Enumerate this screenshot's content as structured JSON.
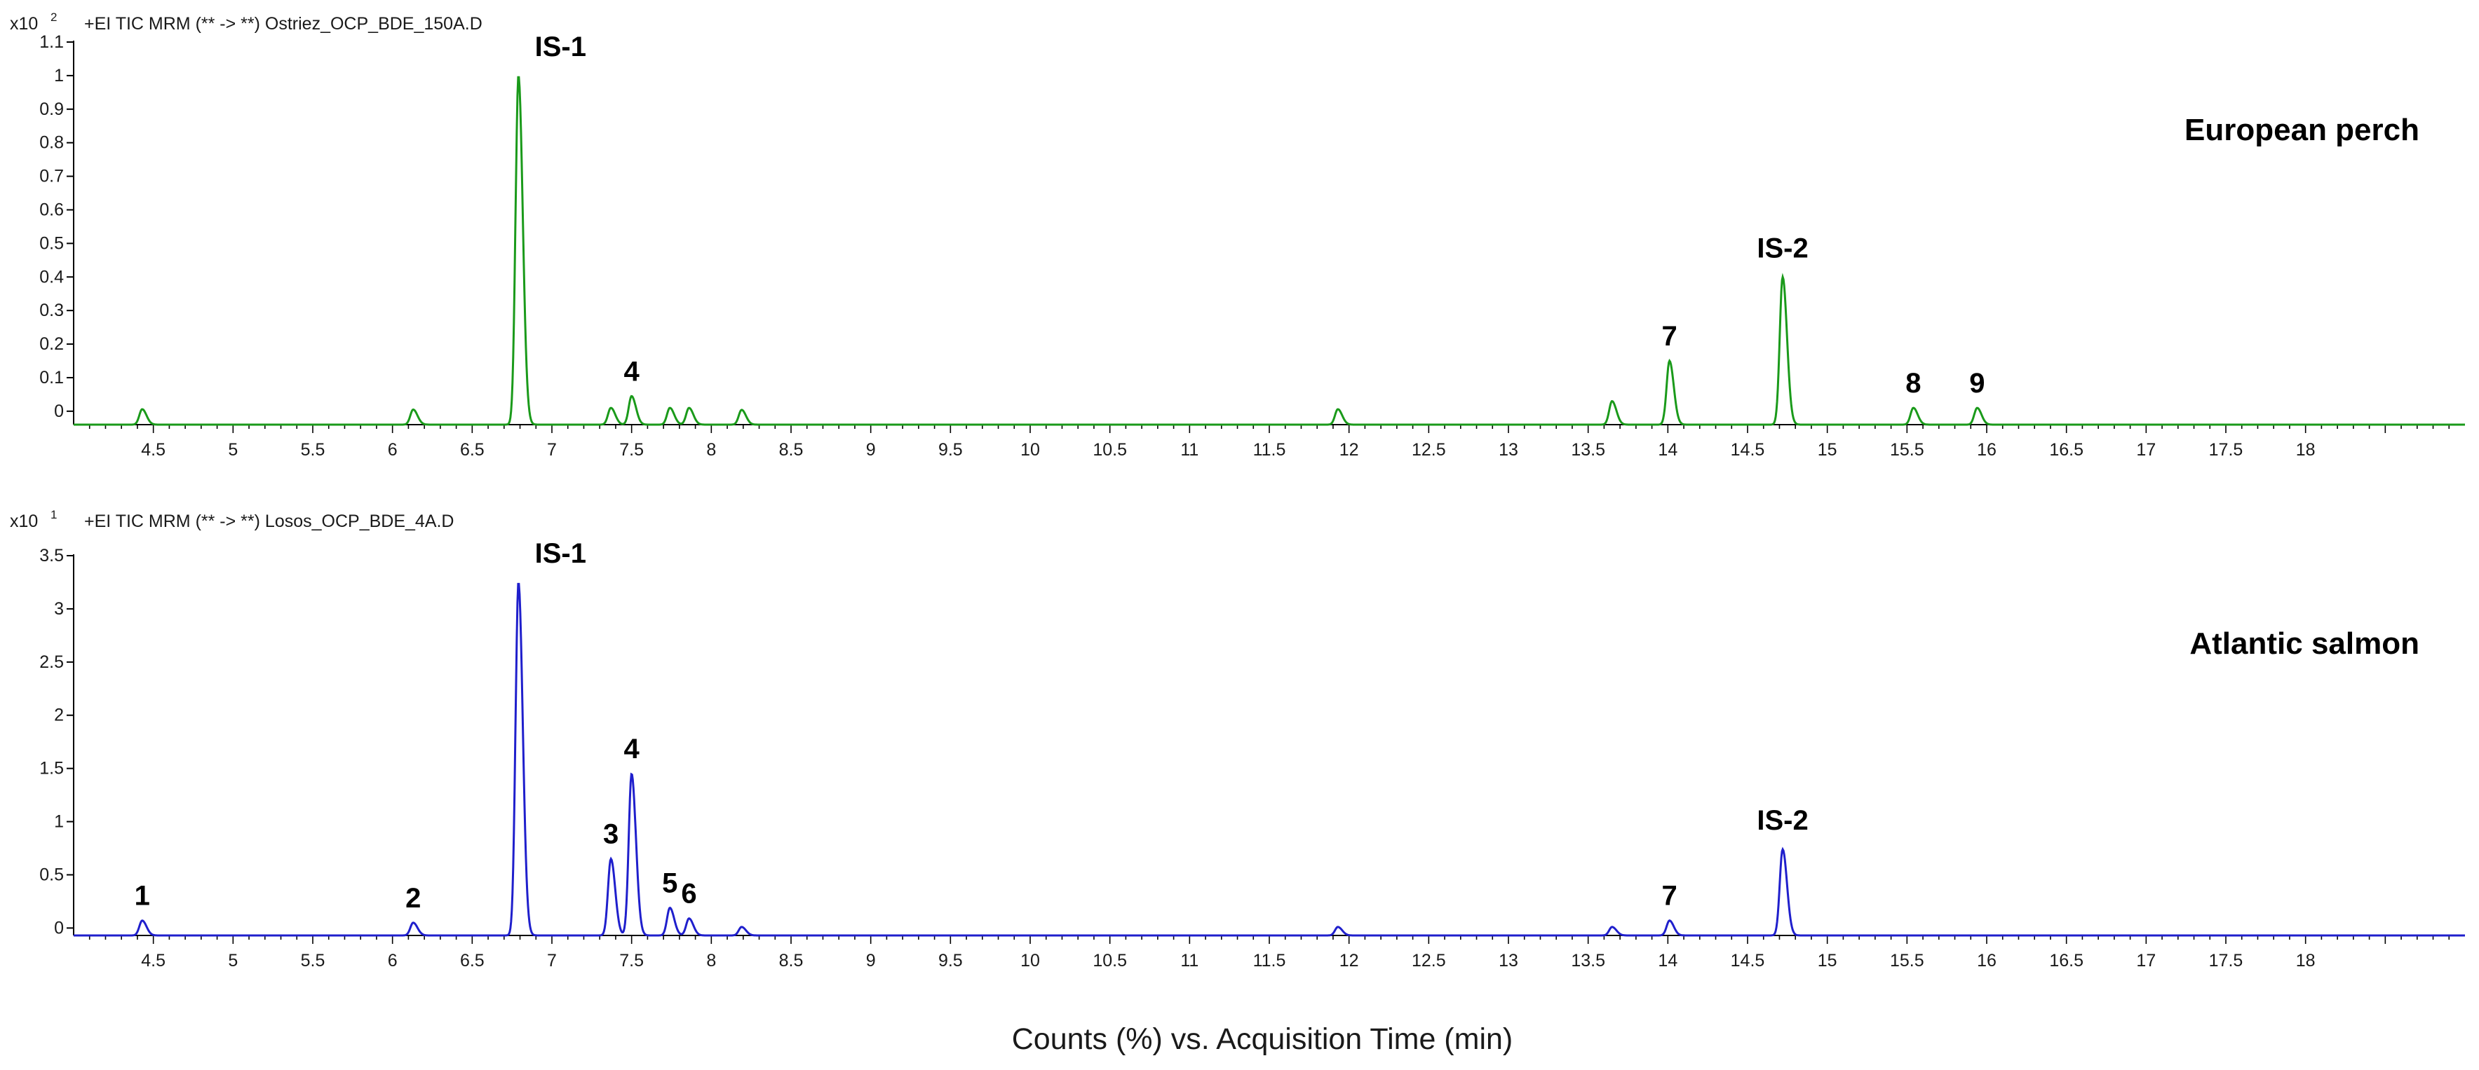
{
  "xlabel": "Counts (%) vs. Acquisition Time (min)",
  "chart_data": [
    {
      "type": "line",
      "header": "+EI TIC MRM (** -> **) Ostriez_OCP_BDE_150A.D",
      "scale_prefix": "x10",
      "scale_exp": "2",
      "species": "European perch",
      "color": "#1a9a1a",
      "x_ticks": [
        "4.5",
        "5",
        "5.5",
        "6",
        "6.5",
        "7",
        "7.5",
        "8",
        "8.5",
        "9",
        "9.5",
        "10",
        "10.5",
        "11",
        "11.5",
        "12",
        "12.5",
        "13",
        "13.5",
        "14",
        "14.5",
        "15",
        "15.5",
        "16",
        "16.5",
        "17",
        "17.5",
        "18"
      ],
      "y_ticks": [
        "0",
        "0.1",
        "0.2",
        "0.3",
        "0.4",
        "0.5",
        "0.6",
        "0.7",
        "0.8",
        "0.9",
        "1",
        "1.1"
      ],
      "xlim": [
        4.0,
        19.0
      ],
      "ylim": [
        -0.04,
        1.1
      ],
      "baseline": -0.04,
      "peaks": [
        {
          "label": "",
          "rt": 4.43,
          "height": 0.006
        },
        {
          "label": "",
          "rt": 6.13,
          "height": 0.005
        },
        {
          "label": "IS-1",
          "rt": 6.79,
          "height": 1.0
        },
        {
          "label": "",
          "rt": 7.37,
          "height": 0.01
        },
        {
          "label": "4",
          "rt": 7.5,
          "height": 0.045
        },
        {
          "label": "",
          "rt": 7.74,
          "height": 0.01
        },
        {
          "label": "",
          "rt": 7.86,
          "height": 0.01
        },
        {
          "label": "",
          "rt": 8.19,
          "height": 0.004
        },
        {
          "label": "",
          "rt": 11.93,
          "height": 0.006
        },
        {
          "label": "",
          "rt": 13.65,
          "height": 0.03
        },
        {
          "label": "7",
          "rt": 14.01,
          "height": 0.15
        },
        {
          "label": "IS-2",
          "rt": 14.72,
          "height": 0.4
        },
        {
          "label": "8",
          "rt": 15.54,
          "height": 0.01
        },
        {
          "label": "9",
          "rt": 15.94,
          "height": 0.01
        }
      ]
    },
    {
      "type": "line",
      "header": "+EI TIC MRM (** -> **) Losos_OCP_BDE_4A.D",
      "scale_prefix": "x10",
      "scale_exp": "1",
      "species": "Atlantic salmon",
      "color": "#1f1fcc",
      "x_ticks": [
        "4.5",
        "5",
        "5.5",
        "6",
        "6.5",
        "7",
        "7.5",
        "8",
        "8.5",
        "9",
        "9.5",
        "10",
        "10.5",
        "11",
        "11.5",
        "12",
        "12.5",
        "13",
        "13.5",
        "14",
        "14.5",
        "15",
        "15.5",
        "16",
        "16.5",
        "17",
        "17.5",
        "18"
      ],
      "y_ticks": [
        "0",
        "0.5",
        "1",
        "1.5",
        "2",
        "2.5",
        "3",
        "3.5"
      ],
      "xlim": [
        4.0,
        19.0
      ],
      "ylim": [
        -0.07,
        3.5
      ],
      "baseline": -0.07,
      "peaks": [
        {
          "label": "1",
          "rt": 4.43,
          "height": 0.07
        },
        {
          "label": "2",
          "rt": 6.13,
          "height": 0.05
        },
        {
          "label": "IS-1",
          "rt": 6.79,
          "height": 3.25
        },
        {
          "label": "3",
          "rt": 7.37,
          "height": 0.65
        },
        {
          "label": "4",
          "rt": 7.5,
          "height": 1.45
        },
        {
          "label": "5",
          "rt": 7.74,
          "height": 0.19
        },
        {
          "label": "6",
          "rt": 7.86,
          "height": 0.09
        },
        {
          "label": "",
          "rt": 8.19,
          "height": 0.01
        },
        {
          "label": "",
          "rt": 11.93,
          "height": 0.01
        },
        {
          "label": "",
          "rt": 13.65,
          "height": 0.01
        },
        {
          "label": "7",
          "rt": 14.01,
          "height": 0.07
        },
        {
          "label": "IS-2",
          "rt": 14.72,
          "height": 0.74
        }
      ]
    }
  ]
}
